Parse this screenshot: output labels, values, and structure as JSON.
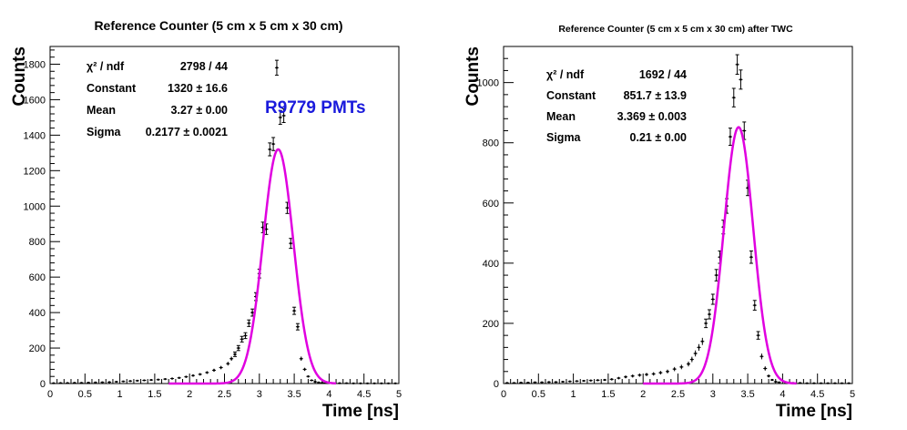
{
  "chart_data": [
    {
      "type": "scatter",
      "title": "Reference Counter (5 cm x 5 cm x 30 cm)",
      "xlabel": "Time [ns]",
      "ylabel": "Counts",
      "xlim": [
        0,
        5
      ],
      "ylim": [
        0,
        1900
      ],
      "x_ticks": [
        0,
        0.5,
        1,
        1.5,
        2,
        2.5,
        3,
        3.5,
        4,
        4.5,
        5
      ],
      "x_tick_labels": [
        "0",
        "0.5",
        "1",
        "1.5",
        "2",
        "2.5",
        "3",
        "3.5",
        "4",
        "4.5",
        "5"
      ],
      "y_ticks": [
        0,
        200,
        400,
        600,
        800,
        1000,
        1200,
        1400,
        1600,
        1800
      ],
      "y_tick_labels": [
        "0",
        "200",
        "400",
        "600",
        "800",
        "1000",
        "1200",
        "1400",
        "1600",
        "1800"
      ],
      "series": [
        {
          "kind": "data-points-with-error-bars",
          "color": "#000000",
          "x": [
            0.05,
            0.15,
            0.25,
            0.35,
            0.45,
            0.55,
            0.65,
            0.75,
            0.85,
            0.95,
            1.05,
            1.15,
            1.25,
            1.35,
            1.45,
            1.55,
            1.65,
            1.75,
            1.85,
            1.95,
            2.05,
            2.15,
            2.25,
            2.35,
            2.45,
            2.55,
            2.6,
            2.65,
            2.7,
            2.75,
            2.8,
            2.85,
            2.9,
            2.95,
            3.0,
            3.05,
            3.1,
            3.15,
            3.2,
            3.25,
            3.3,
            3.35,
            3.4,
            3.45,
            3.5,
            3.55,
            3.6,
            3.65,
            3.7,
            3.75,
            3.8,
            3.85,
            3.9,
            3.95,
            4.0,
            4.05,
            4.15,
            4.25,
            4.35,
            4.45,
            4.55,
            4.65,
            4.75,
            4.85,
            4.95
          ],
          "y": [
            2,
            3,
            3,
            4,
            4,
            5,
            6,
            7,
            8,
            10,
            12,
            14,
            16,
            18,
            20,
            22,
            25,
            28,
            32,
            38,
            45,
            52,
            62,
            75,
            90,
            112,
            140,
            165,
            200,
            250,
            270,
            340,
            400,
            490,
            620,
            880,
            870,
            1320,
            1350,
            1780,
            1500,
            1510,
            990,
            790,
            410,
            320,
            140,
            80,
            40,
            18,
            10,
            6,
            4,
            3,
            3,
            2,
            2,
            2,
            1,
            1,
            1,
            1,
            1,
            1,
            1
          ]
        },
        {
          "kind": "gaussian-fit",
          "color": "#e000e0",
          "constant": 1320,
          "mean": 3.27,
          "sigma": 0.2177,
          "x_range": [
            1.7,
            4.1
          ]
        }
      ],
      "stats_box": [
        {
          "label": "χ² / ndf",
          "value": "2798 / 44"
        },
        {
          "label": "Constant",
          "value": "1320 ± 16.6"
        },
        {
          "label": "Mean",
          "value": "3.27 ± 0.00"
        },
        {
          "label": "Sigma",
          "value": "0.2177 ± 0.0021"
        }
      ],
      "annotation": {
        "text": "R9779 PMTs",
        "color": "#1a1adc"
      }
    },
    {
      "type": "scatter",
      "title": "Reference Counter (5 cm x 5 cm x 30 cm) after TWC",
      "xlabel": "Time [ns]",
      "ylabel": "Counts",
      "xlim": [
        0,
        5
      ],
      "ylim": [
        0,
        1120
      ],
      "x_ticks": [
        0,
        0.5,
        1,
        1.5,
        2,
        2.5,
        3,
        3.5,
        4,
        4.5,
        5
      ],
      "x_tick_labels": [
        "0",
        "0.5",
        "1",
        "1.5",
        "2",
        "2.5",
        "3",
        "3.5",
        "4",
        "4.5",
        "5"
      ],
      "y_ticks": [
        0,
        200,
        400,
        600,
        800,
        1000
      ],
      "y_tick_labels": [
        "0",
        "200",
        "400",
        "600",
        "800",
        "1000"
      ],
      "series": [
        {
          "kind": "data-points-with-error-bars",
          "color": "#000000",
          "x": [
            0.05,
            0.15,
            0.25,
            0.35,
            0.45,
            0.55,
            0.65,
            0.75,
            0.85,
            0.95,
            1.05,
            1.15,
            1.25,
            1.35,
            1.45,
            1.55,
            1.65,
            1.75,
            1.85,
            1.95,
            2.05,
            2.15,
            2.25,
            2.35,
            2.45,
            2.55,
            2.65,
            2.7,
            2.75,
            2.8,
            2.85,
            2.9,
            2.95,
            3.0,
            3.05,
            3.1,
            3.15,
            3.2,
            3.25,
            3.3,
            3.35,
            3.4,
            3.45,
            3.5,
            3.55,
            3.6,
            3.65,
            3.7,
            3.75,
            3.8,
            3.85,
            3.9,
            3.95,
            4.05,
            4.15,
            4.25,
            4.35,
            4.45,
            4.55,
            4.65,
            4.75,
            4.85,
            4.95
          ],
          "y": [
            2,
            2,
            3,
            3,
            4,
            4,
            5,
            5,
            6,
            7,
            8,
            9,
            10,
            11,
            12,
            14,
            18,
            22,
            25,
            28,
            30,
            32,
            36,
            40,
            48,
            55,
            65,
            80,
            100,
            120,
            140,
            200,
            230,
            280,
            360,
            420,
            520,
            590,
            820,
            950,
            1060,
            1010,
            840,
            650,
            420,
            260,
            160,
            90,
            50,
            25,
            12,
            6,
            4,
            3,
            2,
            2,
            1,
            1,
            1,
            1,
            1,
            1,
            1
          ]
        },
        {
          "kind": "gaussian-fit",
          "color": "#e000e0",
          "constant": 851.7,
          "mean": 3.369,
          "sigma": 0.21,
          "x_range": [
            2.0,
            4.2
          ]
        }
      ],
      "stats_box": [
        {
          "label": "χ² / ndf",
          "value": "1692 / 44"
        },
        {
          "label": "Constant",
          "value": "851.7 ± 13.9"
        },
        {
          "label": "Mean",
          "value": "3.369 ± 0.003"
        },
        {
          "label": "Sigma",
          "value": "0.21 ± 0.00"
        }
      ]
    }
  ]
}
